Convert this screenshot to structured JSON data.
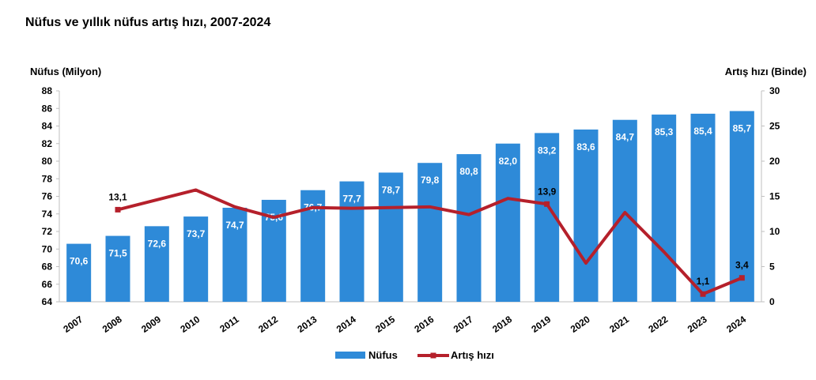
{
  "title": "Nüfus ve yıllık nüfus artış hızı, 2007-2024",
  "chart_data": {
    "type": "bar+line",
    "categories": [
      "2007",
      "2008",
      "2009",
      "2010",
      "2011",
      "2012",
      "2013",
      "2014",
      "2015",
      "2016",
      "2017",
      "2018",
      "2019",
      "2020",
      "2021",
      "2022",
      "2023",
      "2024"
    ],
    "series": [
      {
        "name": "Nüfus",
        "type": "bar",
        "axis": "left",
        "color": "#2e8ad8",
        "values": [
          70.6,
          71.5,
          72.6,
          73.7,
          74.7,
          75.6,
          76.7,
          77.7,
          78.7,
          79.8,
          80.8,
          82.0,
          83.2,
          83.6,
          84.7,
          85.3,
          85.4,
          85.7
        ],
        "labels": [
          "70,6",
          "71,5",
          "72,6",
          "73,7",
          "74,7",
          "75,6",
          "76,7",
          "77,7",
          "78,7",
          "79,8",
          "80,8",
          "82,0",
          "83,2",
          "83,6",
          "84,7",
          "85,3",
          "85,4",
          "85,7"
        ]
      },
      {
        "name": "Artış hızı",
        "type": "line",
        "axis": "right",
        "color": "#b5202b",
        "values": [
          null,
          13.1,
          14.5,
          15.9,
          13.5,
          12.0,
          13.4,
          13.3,
          13.4,
          13.5,
          12.4,
          14.7,
          13.9,
          5.5,
          12.7,
          7.1,
          1.1,
          3.4
        ],
        "labelled": [
          {
            "index": 1,
            "label": "13,1"
          },
          {
            "index": 12,
            "label": "13,9"
          },
          {
            "index": 16,
            "label": "1,1"
          },
          {
            "index": 17,
            "label": "3,4"
          }
        ]
      }
    ],
    "y_left": {
      "label": "Nüfus (Milyon)",
      "min": 64,
      "max": 88,
      "ticks": [
        64,
        66,
        68,
        70,
        72,
        74,
        76,
        78,
        80,
        82,
        84,
        86,
        88
      ]
    },
    "y_right": {
      "label": "Artış hızı (Binde)",
      "min": 0,
      "max": 30,
      "ticks": [
        0,
        5,
        10,
        15,
        20,
        25,
        30
      ]
    },
    "legend": {
      "position": "bottom",
      "items": [
        "Nüfus",
        "Artış hızı"
      ]
    },
    "grid": false
  }
}
